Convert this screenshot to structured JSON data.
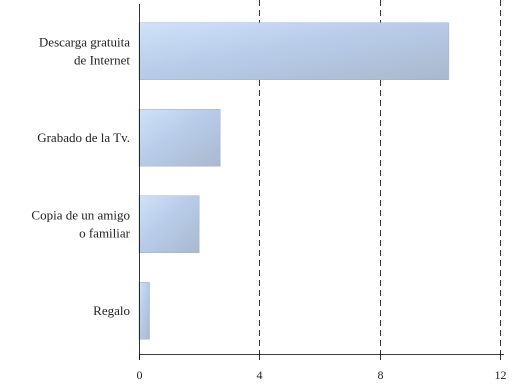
{
  "chart_data": {
    "type": "bar",
    "orientation": "horizontal",
    "categories": [
      [
        "Descarga gratuita",
        "de Internet"
      ],
      [
        "Grabado de la Tv."
      ],
      [
        "Copia de un amigo",
        "o familiar"
      ],
      [
        "Regalo"
      ]
    ],
    "values": [
      10.3,
      2.7,
      2.0,
      0.35
    ],
    "xlim": [
      0,
      12
    ],
    "xticks": [
      0,
      4,
      8,
      12
    ],
    "grid": "vertical dashed",
    "legend": "none",
    "title": "",
    "xlabel": "",
    "ylabel": "",
    "colors": {
      "bar_light": "#c6dcf6",
      "bar_dark": "#a6bcd8",
      "grid": "#000000",
      "axis": "#000000"
    }
  }
}
